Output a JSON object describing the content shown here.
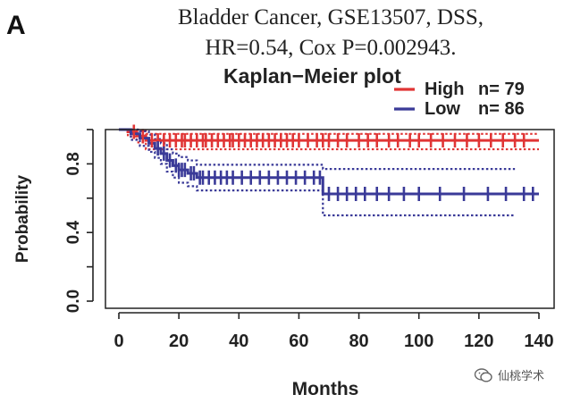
{
  "panel_label": "A",
  "chart_data": {
    "type": "kaplan-meier",
    "title_line1": "Bladder Cancer, GSE13507, DSS,",
    "title_line2": "HR=0.54, Cox P=0.002943.",
    "plot_title": "Kaplan−Meier plot",
    "xlabel": "Months",
    "ylabel": "Probability",
    "xlim": [
      0,
      140
    ],
    "ylim": [
      0,
      1
    ],
    "x_ticks": [
      0,
      20,
      40,
      60,
      80,
      100,
      120,
      140
    ],
    "y_ticks": [
      0.0,
      0.4,
      0.8
    ],
    "y_tick_labels": [
      "0.0",
      "0.4",
      "0.8"
    ],
    "legend": {
      "position": "top-right",
      "entries": [
        {
          "label": "High",
          "n_label": "n= 79",
          "color": "#e03535"
        },
        {
          "label": "Low",
          "n_label": "n= 86",
          "color": "#3a3a98"
        }
      ]
    },
    "series": [
      {
        "name": "High",
        "color": "#e03535",
        "steps": [
          [
            0,
            1.0
          ],
          [
            3,
            0.987
          ],
          [
            6,
            0.962
          ],
          [
            9,
            0.937
          ],
          [
            140,
            0.937
          ]
        ],
        "ci_upper": [
          [
            0,
            1.0
          ],
          [
            3,
            1.0
          ],
          [
            6,
            0.992
          ],
          [
            9,
            0.975
          ],
          [
            140,
            0.975
          ]
        ],
        "ci_lower": [
          [
            0,
            1.0
          ],
          [
            3,
            0.96
          ],
          [
            6,
            0.925
          ],
          [
            9,
            0.885
          ],
          [
            140,
            0.885
          ]
        ],
        "censor_times": [
          5,
          8,
          11,
          13,
          15,
          17,
          19,
          21,
          22,
          24,
          26,
          28,
          29,
          31,
          33,
          35,
          37,
          38,
          40,
          42,
          44,
          46,
          48,
          50,
          52,
          54,
          56,
          58,
          60,
          63,
          66,
          68,
          70,
          73,
          76,
          80,
          83,
          86,
          90,
          93,
          97,
          100,
          104,
          108,
          112,
          116,
          120,
          124,
          128,
          132,
          135
        ]
      },
      {
        "name": "Low",
        "color": "#3a3a98",
        "steps": [
          [
            0,
            1.0
          ],
          [
            4,
            0.975
          ],
          [
            7,
            0.95
          ],
          [
            10,
            0.92
          ],
          [
            12,
            0.89
          ],
          [
            14,
            0.86
          ],
          [
            16,
            0.82
          ],
          [
            18,
            0.79
          ],
          [
            20,
            0.765
          ],
          [
            23,
            0.745
          ],
          [
            26,
            0.72
          ],
          [
            66,
            0.72
          ],
          [
            68,
            0.625
          ],
          [
            140,
            0.625
          ]
        ],
        "ci_upper": [
          [
            0,
            1.0
          ],
          [
            4,
            1.0
          ],
          [
            7,
            0.99
          ],
          [
            10,
            0.97
          ],
          [
            12,
            0.945
          ],
          [
            14,
            0.92
          ],
          [
            16,
            0.885
          ],
          [
            18,
            0.86
          ],
          [
            20,
            0.84
          ],
          [
            23,
            0.82
          ],
          [
            26,
            0.795
          ],
          [
            66,
            0.795
          ],
          [
            68,
            0.77
          ],
          [
            132,
            0.77
          ]
        ],
        "ci_lower": [
          [
            0,
            1.0
          ],
          [
            4,
            0.94
          ],
          [
            7,
            0.905
          ],
          [
            10,
            0.87
          ],
          [
            12,
            0.835
          ],
          [
            14,
            0.8
          ],
          [
            16,
            0.755
          ],
          [
            18,
            0.72
          ],
          [
            20,
            0.69
          ],
          [
            23,
            0.67
          ],
          [
            26,
            0.645
          ],
          [
            66,
            0.645
          ],
          [
            68,
            0.5
          ],
          [
            132,
            0.5
          ]
        ],
        "censor_times": [
          13,
          15,
          17,
          19,
          20,
          21,
          22,
          24,
          25,
          27,
          28,
          30,
          32,
          34,
          36,
          38,
          41,
          44,
          47,
          50,
          53,
          56,
          59,
          62,
          65,
          67,
          70,
          73,
          76,
          79,
          82,
          86,
          90,
          95,
          100,
          107,
          115,
          123,
          129,
          135,
          138
        ]
      }
    ]
  },
  "watermark": {
    "text": "仙桃学术"
  }
}
